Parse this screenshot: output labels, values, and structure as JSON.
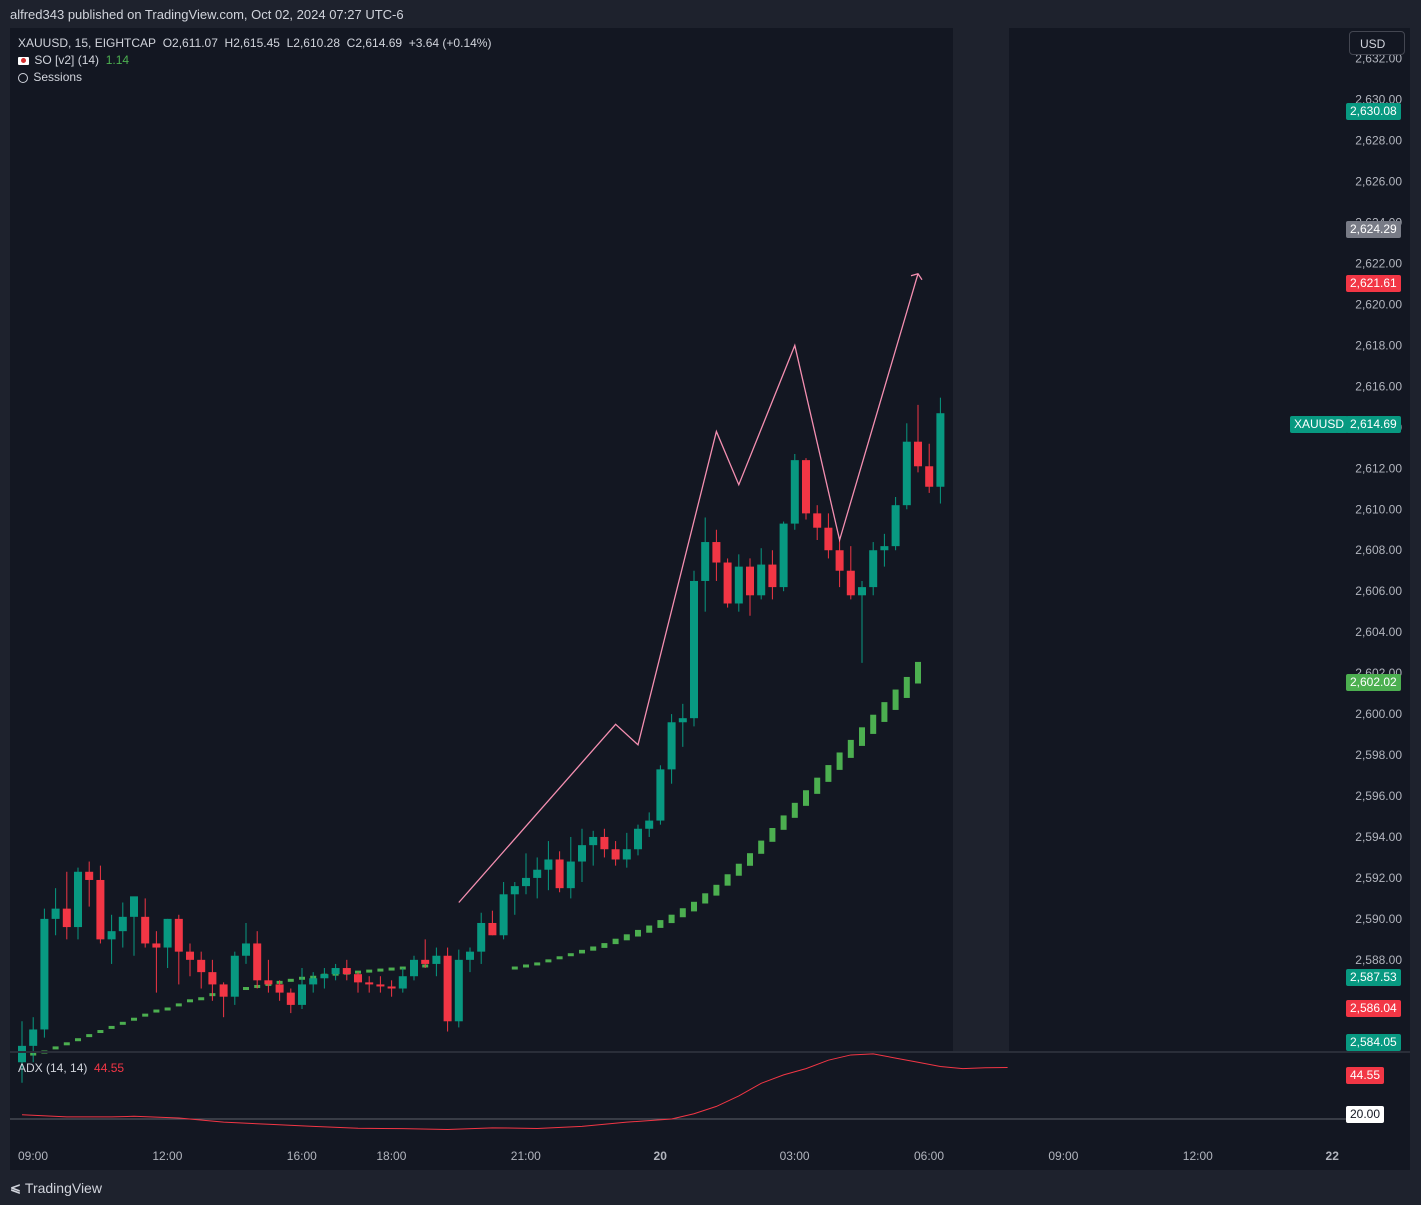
{
  "header": {
    "publish_line": "alfred343 published on TradingView.com, Oct 02, 2024 07:27 UTC-6"
  },
  "legend": {
    "symbol": "XAUUSD, 15, EIGHTCAP",
    "open": "O2,611.07",
    "high": "H2,615.45",
    "low": "L2,610.28",
    "close": "C2,614.69",
    "change": "+3.64 (+0.14%)",
    "so_flag_icon": "japan-flag-icon",
    "so_label": "SO [v2] (14)",
    "so_value": "1.14",
    "sessions_icon": "stopwatch-icon",
    "sessions_label": "Sessions"
  },
  "currency_button": "USD",
  "price_tags": {
    "high_green": "2,630.08",
    "gray": "2,624.29",
    "red_top": "2,621.61",
    "symbol_label": "XAUUSD",
    "last": "2,614.69",
    "so_current": "2,602.02",
    "green_low": "2,587.53",
    "red_low": "2,586.04",
    "green_bottom": "2,584.05"
  },
  "adx": {
    "label": "ADX (14, 14)",
    "value": "44.55",
    "tag_value": "44.55",
    "level_tag": "20.00"
  },
  "footer": {
    "brand": "TradingView",
    "logo_icon": "tradingview-logo-icon"
  },
  "colors": {
    "up": "#089981",
    "down": "#f23645",
    "so": "#4caf50",
    "annotation": "#f48fb1",
    "adx": "#f23645"
  },
  "chart_data": {
    "type": "candlestick",
    "title": "XAUUSD, 15, EIGHTCAP",
    "price_axis": {
      "ylim": [
        2583.5,
        2633.5
      ],
      "ticks": [
        "2,632.00",
        "2,630.00",
        "2,628.00",
        "2,626.00",
        "2,624.00",
        "2,622.00",
        "2,620.00",
        "2,618.00",
        "2,616.00",
        "2,614.00",
        "2,612.00",
        "2,610.00",
        "2,608.00",
        "2,606.00",
        "2,604.00",
        "2,602.00",
        "2,600.00",
        "2,598.00",
        "2,596.00",
        "2,594.00",
        "2,592.00",
        "2,590.00",
        "2,588.00"
      ]
    },
    "time_axis": {
      "ticks": [
        "09:00",
        "12:00",
        "16:00",
        "18:00",
        "21:00",
        "20",
        "03:00",
        "06:00",
        "09:00",
        "12:00",
        "22"
      ],
      "tick_index": [
        0,
        12,
        24,
        32,
        44,
        56,
        68,
        80,
        92,
        104,
        116
      ]
    },
    "candles": [
      [
        2583.0,
        2585.0,
        2582.0,
        2583.8
      ],
      [
        2583.8,
        2585.2,
        2583.0,
        2584.6
      ],
      [
        2584.6,
        2590.5,
        2584.2,
        2590.0
      ],
      [
        2590.0,
        2591.5,
        2589.2,
        2590.5
      ],
      [
        2590.5,
        2592.3,
        2589.0,
        2589.6
      ],
      [
        2589.6,
        2592.5,
        2589.0,
        2592.3
      ],
      [
        2592.3,
        2592.8,
        2590.6,
        2591.9
      ],
      [
        2591.9,
        2592.6,
        2588.8,
        2589.0
      ],
      [
        2589.0,
        2590.2,
        2587.8,
        2589.4
      ],
      [
        2589.4,
        2590.8,
        2588.6,
        2590.1
      ],
      [
        2590.1,
        2590.8,
        2588.2,
        2591.1
      ],
      [
        2590.1,
        2591.0,
        2588.6,
        2588.8
      ],
      [
        2588.8,
        2589.4,
        2586.4,
        2588.6
      ],
      [
        2588.6,
        2590.0,
        2587.6,
        2590.0
      ],
      [
        2590.0,
        2590.2,
        2586.8,
        2588.4
      ],
      [
        2588.4,
        2588.8,
        2587.2,
        2588.0
      ],
      [
        2588.0,
        2588.4,
        2586.6,
        2587.4
      ],
      [
        2587.4,
        2588.0,
        2586.0,
        2586.8
      ],
      [
        2586.8,
        2586.9,
        2585.2,
        2586.2
      ],
      [
        2586.2,
        2588.4,
        2585.8,
        2588.2
      ],
      [
        2588.2,
        2589.8,
        2587.8,
        2588.8
      ],
      [
        2588.8,
        2589.4,
        2586.6,
        2587.0
      ],
      [
        2587.0,
        2588.0,
        2586.4,
        2586.8
      ],
      [
        2586.8,
        2587.0,
        2586.0,
        2586.4
      ],
      [
        2586.4,
        2586.6,
        2585.4,
        2585.8
      ],
      [
        2585.8,
        2587.6,
        2585.6,
        2586.8
      ],
      [
        2586.8,
        2587.4,
        2586.4,
        2587.1
      ],
      [
        2587.1,
        2587.6,
        2586.6,
        2587.3
      ],
      [
        2587.3,
        2587.8,
        2587.0,
        2587.6
      ],
      [
        2587.6,
        2588.0,
        2587.0,
        2587.3
      ],
      [
        2587.3,
        2587.4,
        2586.4,
        2586.9
      ],
      [
        2586.9,
        2587.2,
        2586.4,
        2586.8
      ],
      [
        2586.8,
        2587.2,
        2586.4,
        2586.7
      ],
      [
        2586.7,
        2587.0,
        2586.2,
        2586.6
      ],
      [
        2586.6,
        2587.6,
        2586.4,
        2587.2
      ],
      [
        2587.2,
        2588.2,
        2587.0,
        2588.0
      ],
      [
        2588.0,
        2589.0,
        2587.6,
        2587.8
      ],
      [
        2587.8,
        2588.6,
        2587.2,
        2588.2
      ],
      [
        2588.2,
        2588.6,
        2584.5,
        2585.0
      ],
      [
        2585.0,
        2588.5,
        2584.7,
        2588.0
      ],
      [
        2588.0,
        2588.6,
        2587.4,
        2588.4
      ],
      [
        2588.4,
        2590.3,
        2587.8,
        2589.8
      ],
      [
        2589.8,
        2590.4,
        2589.2,
        2589.2
      ],
      [
        2589.2,
        2591.8,
        2589.0,
        2591.2
      ],
      [
        2591.2,
        2591.8,
        2590.2,
        2591.6
      ],
      [
        2591.6,
        2593.2,
        2591.2,
        2592.0
      ],
      [
        2592.0,
        2593.0,
        2591.0,
        2592.4
      ],
      [
        2592.4,
        2593.8,
        2591.4,
        2592.9
      ],
      [
        2592.9,
        2593.3,
        2591.3,
        2591.5
      ],
      [
        2591.5,
        2594.0,
        2591.0,
        2592.8
      ],
      [
        2592.8,
        2594.4,
        2591.8,
        2593.6
      ],
      [
        2593.6,
        2594.3,
        2592.6,
        2594.0
      ],
      [
        2594.0,
        2594.4,
        2593.0,
        2593.4
      ],
      [
        2593.4,
        2593.8,
        2592.6,
        2592.9
      ],
      [
        2592.9,
        2594.2,
        2592.5,
        2593.4
      ],
      [
        2593.4,
        2594.6,
        2593.1,
        2594.4
      ],
      [
        2594.4,
        2595.2,
        2594.0,
        2594.8
      ],
      [
        2594.8,
        2597.5,
        2594.6,
        2597.3
      ],
      [
        2597.3,
        2600.0,
        2596.6,
        2599.6
      ],
      [
        2599.6,
        2600.5,
        2598.4,
        2599.8
      ],
      [
        2599.8,
        2607.0,
        2599.4,
        2606.5
      ],
      [
        2606.5,
        2609.6,
        2605.0,
        2608.4
      ],
      [
        2608.4,
        2609.0,
        2606.5,
        2607.4
      ],
      [
        2607.4,
        2607.6,
        2605.2,
        2605.4
      ],
      [
        2605.4,
        2607.8,
        2605.0,
        2607.2
      ],
      [
        2607.2,
        2607.6,
        2604.8,
        2605.8
      ],
      [
        2605.8,
        2608.1,
        2605.6,
        2607.3
      ],
      [
        2607.3,
        2608.0,
        2605.6,
        2606.2
      ],
      [
        2606.2,
        2609.4,
        2606.0,
        2609.3
      ],
      [
        2609.3,
        2612.7,
        2609.0,
        2612.4
      ],
      [
        2612.4,
        2612.5,
        2609.5,
        2609.8
      ],
      [
        2609.8,
        2610.2,
        2608.5,
        2609.1
      ],
      [
        2609.1,
        2609.8,
        2607.6,
        2608.0
      ],
      [
        2608.0,
        2608.6,
        2606.2,
        2607.0
      ],
      [
        2607.0,
        2608.2,
        2605.6,
        2605.8
      ],
      [
        2605.8,
        2606.5,
        2602.5,
        2606.2
      ],
      [
        2606.2,
        2608.4,
        2605.8,
        2608.0
      ],
      [
        2608.0,
        2608.8,
        2607.2,
        2608.2
      ],
      [
        2608.2,
        2610.6,
        2608.0,
        2610.2
      ],
      [
        2610.2,
        2614.2,
        2610.0,
        2613.3
      ],
      [
        2613.3,
        2615.1,
        2611.8,
        2612.1
      ],
      [
        2612.1,
        2613.2,
        2610.8,
        2611.1
      ],
      [
        2611.1,
        2615.45,
        2610.28,
        2614.69
      ]
    ],
    "so_line": [
      [
        0,
        2583.2
      ],
      [
        1,
        2583.4
      ],
      [
        2,
        2583.5
      ],
      [
        3,
        2583.7
      ],
      [
        4,
        2583.9
      ],
      [
        5,
        2584.1
      ],
      [
        6,
        2584.3
      ],
      [
        7,
        2584.5
      ],
      [
        8,
        2584.7
      ],
      [
        9,
        2584.9
      ],
      [
        10,
        2585.1
      ],
      [
        11,
        2585.3
      ],
      [
        12,
        2585.5
      ],
      [
        13,
        2585.6
      ],
      [
        14,
        2585.8
      ],
      [
        15,
        2586.0
      ],
      [
        16,
        2586.1
      ],
      [
        17,
        2586.3
      ],
      [
        18,
        2586.4
      ],
      [
        19,
        2586.5
      ],
      [
        20,
        2586.6
      ],
      [
        21,
        2586.7
      ],
      [
        22,
        2586.8
      ],
      [
        23,
        2586.9
      ],
      [
        24,
        2587.0
      ],
      [
        25,
        2587.1
      ],
      [
        26,
        2587.15
      ],
      [
        27,
        2587.25
      ],
      [
        28,
        2587.3
      ],
      [
        29,
        2587.35
      ],
      [
        30,
        2587.4
      ],
      [
        31,
        2587.45
      ],
      [
        32,
        2587.5
      ],
      [
        33,
        2587.55
      ],
      [
        34,
        2587.6
      ],
      [
        35,
        2587.65
      ],
      [
        36,
        2587.7
      ],
      [
        44,
        2587.6
      ],
      [
        45,
        2587.7
      ],
      [
        46,
        2587.8
      ],
      [
        47,
        2587.95
      ],
      [
        48,
        2588.1
      ],
      [
        49,
        2588.25
      ],
      [
        50,
        2588.4
      ],
      [
        51,
        2588.55
      ],
      [
        52,
        2588.7
      ],
      [
        53,
        2588.9
      ],
      [
        54,
        2589.1
      ],
      [
        55,
        2589.3
      ],
      [
        56,
        2589.5
      ],
      [
        57,
        2589.75
      ],
      [
        58,
        2590.0
      ],
      [
        59,
        2590.3
      ],
      [
        60,
        2590.6
      ],
      [
        61,
        2591.0
      ],
      [
        62,
        2591.4
      ],
      [
        63,
        2591.9
      ],
      [
        64,
        2592.4
      ],
      [
        65,
        2592.9
      ],
      [
        66,
        2593.5
      ],
      [
        67,
        2594.1
      ],
      [
        68,
        2594.7
      ],
      [
        69,
        2595.3
      ],
      [
        70,
        2595.9
      ],
      [
        71,
        2596.5
      ],
      [
        72,
        2597.1
      ],
      [
        73,
        2597.7
      ],
      [
        74,
        2598.3
      ],
      [
        75,
        2598.9
      ],
      [
        76,
        2599.5
      ],
      [
        77,
        2600.1
      ],
      [
        78,
        2600.7
      ],
      [
        79,
        2601.3
      ],
      [
        80,
        2602.02
      ]
    ],
    "annotation_path": [
      [
        39,
        2590.8
      ],
      [
        53,
        2599.5
      ],
      [
        55,
        2598.5
      ],
      [
        62,
        2613.8
      ],
      [
        64,
        2611.2
      ],
      [
        69,
        2618.0
      ],
      [
        73,
        2608.5
      ],
      [
        80,
        2621.5
      ]
    ],
    "adx": {
      "level": 20.0,
      "ylim": [
        10,
        50
      ],
      "points": [
        [
          0,
          22
        ],
        [
          4,
          21
        ],
        [
          8,
          21
        ],
        [
          10,
          21.3
        ],
        [
          14,
          20.5
        ],
        [
          18,
          18.5
        ],
        [
          22,
          17.5
        ],
        [
          26,
          16.5
        ],
        [
          30,
          15.6
        ],
        [
          34,
          15.4
        ],
        [
          38,
          15.0
        ],
        [
          42,
          15.8
        ],
        [
          46,
          15.5
        ],
        [
          50,
          16.5
        ],
        [
          54,
          18.5
        ],
        [
          58,
          20.0
        ],
        [
          60,
          22.5
        ],
        [
          62,
          26
        ],
        [
          64,
          31
        ],
        [
          66,
          37
        ],
        [
          68,
          41
        ],
        [
          70,
          44
        ],
        [
          72,
          48
        ],
        [
          74,
          50.5
        ],
        [
          76,
          51
        ],
        [
          78,
          49
        ],
        [
          80,
          47
        ],
        [
          82,
          45
        ],
        [
          84,
          44
        ],
        [
          86,
          44.4
        ],
        [
          88,
          44.55
        ]
      ]
    }
  }
}
